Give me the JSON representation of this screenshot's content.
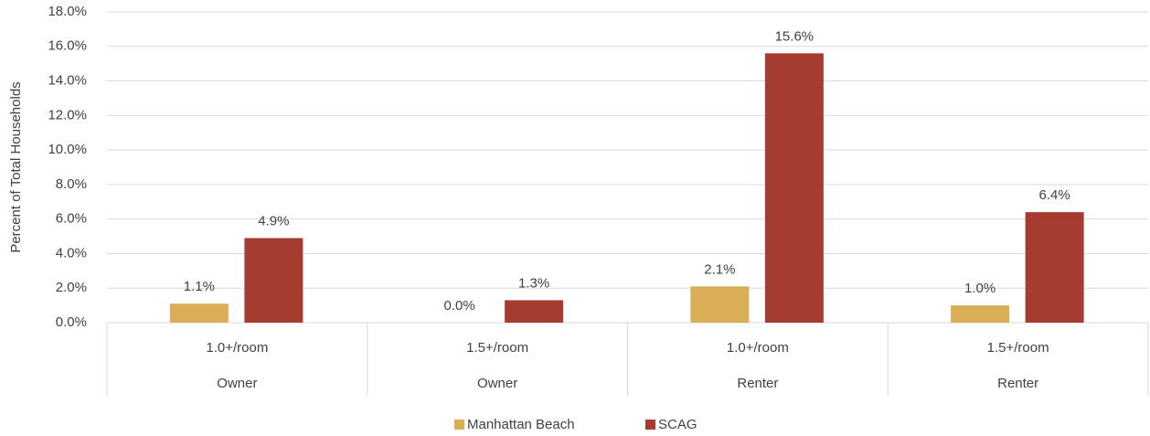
{
  "chart_data": {
    "type": "bar",
    "y_label": "Percent of Total Households",
    "categories": [
      "1.0+/room",
      "1.5+/room",
      "1.0+/room",
      "1.5+/room"
    ],
    "category_groups": [
      "Owner",
      "Owner",
      "Renter",
      "Renter"
    ],
    "series": [
      {
        "name": "Manhattan Beach",
        "color": "#d9ae57",
        "values": [
          1.1,
          0.0,
          2.1,
          1.0
        ],
        "value_labels": [
          "1.1%",
          "0.0%",
          "2.1%",
          "1.0%"
        ]
      },
      {
        "name": "SCAG",
        "color": "#a63b30",
        "values": [
          4.9,
          1.3,
          15.6,
          6.4
        ],
        "value_labels": [
          "4.9%",
          "1.3%",
          "15.6%",
          "6.4%"
        ]
      }
    ],
    "ylim": [
      0,
      18
    ],
    "yticks": [
      {
        "value": 0,
        "label": "0.0%"
      },
      {
        "value": 2,
        "label": "2.0%"
      },
      {
        "value": 4,
        "label": "4.0%"
      },
      {
        "value": 6,
        "label": "6.0%"
      },
      {
        "value": 8,
        "label": "8.0%"
      },
      {
        "value": 10,
        "label": "10.0%"
      },
      {
        "value": 12,
        "label": "12.0%"
      },
      {
        "value": 14,
        "label": "14.0%"
      },
      {
        "value": 16,
        "label": "16.0%"
      },
      {
        "value": 18,
        "label": "18.0%"
      }
    ],
    "grid": true,
    "legend": "bottom"
  }
}
